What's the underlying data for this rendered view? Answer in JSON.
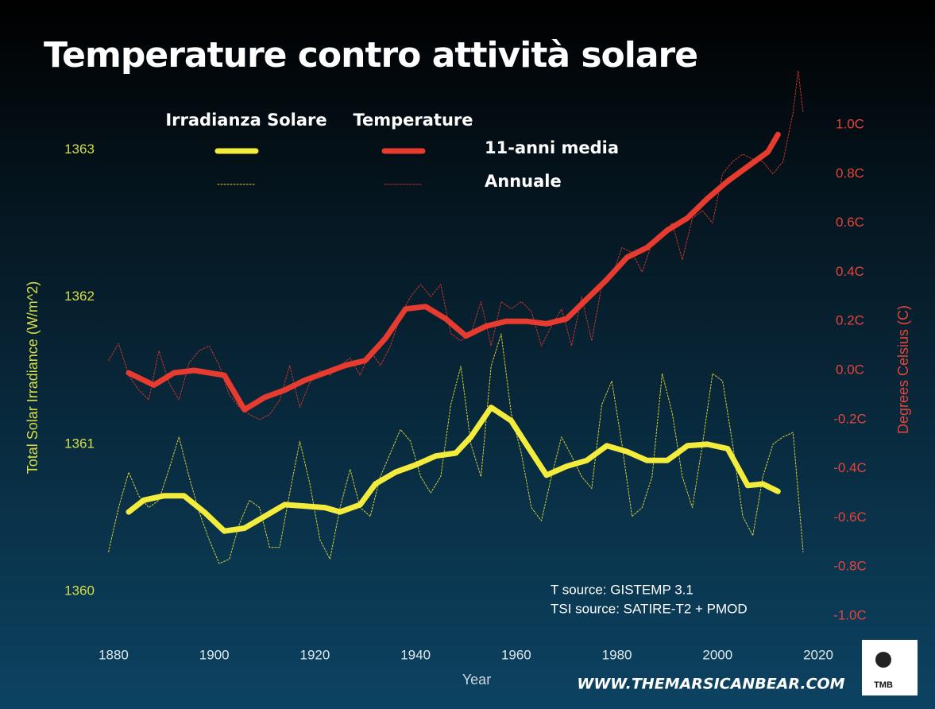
{
  "chart_data": {
    "type": "line",
    "title": "Temperature contro attività solare",
    "xlabel": "Year",
    "ylabel": "Total Solar Irradiance (W/m^2)",
    "y2label": "Degrees Celsius (C)",
    "xlim": [
      1875,
      2025
    ],
    "xticks": [
      1880,
      1900,
      1920,
      1940,
      1960,
      1980,
      2000,
      2020
    ],
    "ylim": [
      1359.75,
      1363.42
    ],
    "yticks": [
      1360,
      1361,
      1362,
      1363
    ],
    "y2lim": [
      -1.05,
      1.15
    ],
    "y2ticks": [
      {
        "value": -1.0,
        "label": "-1.0C"
      },
      {
        "value": -0.8,
        "label": "-0.8C"
      },
      {
        "value": -0.6,
        "label": "-0.6C"
      },
      {
        "value": -0.4,
        "label": "-0.4C"
      },
      {
        "value": -0.2,
        "label": "-0.2C"
      },
      {
        "value": 0.0,
        "label": "0.0C"
      },
      {
        "value": 0.2,
        "label": "0.2C"
      },
      {
        "value": 0.4,
        "label": "0.4C"
      },
      {
        "value": 0.6,
        "label": "0.6C"
      },
      {
        "value": 0.8,
        "label": "0.8C"
      },
      {
        "value": 1.0,
        "label": "1.0C"
      }
    ],
    "ytick_color": "#d6de45",
    "y2tick_color": "#e5443a",
    "legend": {
      "columns": [
        "Irradianza Solare",
        "Temperature"
      ],
      "rows": [
        "11-anni media",
        "Annuale"
      ]
    },
    "series": [
      {
        "color": "#f4ec3c",
        "width": 7,
        "dash": "none",
        "x": [
          1883,
          1886,
          1890,
          1894,
          1898,
          1902,
          1906,
          1910,
          1914,
          1918,
          1922,
          1925,
          1929,
          1932,
          1936,
          1940,
          1944,
          1948,
          1951,
          1955,
          1959,
          1962,
          1966,
          1970,
          1974,
          1978,
          1982,
          1986,
          1990,
          1994,
          1998,
          2002,
          2006,
          2009,
          2012
        ],
        "values": [
          1360.54,
          1360.62,
          1360.65,
          1360.65,
          1360.54,
          1360.41,
          1360.43,
          1360.51,
          1360.59,
          1360.58,
          1360.57,
          1360.54,
          1360.59,
          1360.73,
          1360.81,
          1360.86,
          1360.92,
          1360.94,
          1361.05,
          1361.25,
          1361.16,
          1361.0,
          1360.79,
          1360.85,
          1360.89,
          1360.99,
          1360.95,
          1360.89,
          1360.89,
          1360.99,
          1361.0,
          1360.97,
          1360.72,
          1360.73,
          1360.68
        ]
      },
      {
        "color": "#e63b2e",
        "width": 7,
        "dash": "none",
        "axis": "y2",
        "x": [
          1883,
          1888,
          1892,
          1896,
          1899,
          1902,
          1906,
          1910,
          1914,
          1918,
          1922,
          1926,
          1930,
          1934,
          1938,
          1942,
          1946,
          1950,
          1954,
          1958,
          1962,
          1966,
          1970,
          1974,
          1978,
          1982,
          1986,
          1990,
          1994,
          1998,
          2002,
          2006,
          2010,
          2012
        ],
        "values": [
          -0.01,
          -0.06,
          -0.01,
          0.0,
          -0.01,
          -0.02,
          -0.16,
          -0.11,
          -0.08,
          -0.04,
          -0.01,
          0.02,
          0.04,
          0.13,
          0.25,
          0.26,
          0.21,
          0.14,
          0.18,
          0.2,
          0.2,
          0.19,
          0.21,
          0.29,
          0.37,
          0.46,
          0.5,
          0.57,
          0.62,
          0.7,
          0.77,
          0.83,
          0.89,
          0.96
        ]
      },
      {
        "color": "#d9cf36",
        "width": 1,
        "dash": "2 2",
        "x": [
          1879,
          1881,
          1883,
          1885,
          1887,
          1889,
          1891,
          1893,
          1895,
          1897,
          1899,
          1901,
          1903,
          1905,
          1907,
          1909,
          1911,
          1913,
          1915,
          1917,
          1919,
          1921,
          1923,
          1925,
          1927,
          1929,
          1931,
          1933,
          1935,
          1937,
          1939,
          1941,
          1943,
          1945,
          1947,
          1949,
          1951,
          1953,
          1955,
          1957,
          1959,
          1961,
          1963,
          1965,
          1967,
          1969,
          1971,
          1973,
          1975,
          1977,
          1979,
          1981,
          1983,
          1985,
          1987,
          1989,
          1991,
          1993,
          1995,
          1997,
          1999,
          2001,
          2003,
          2005,
          2007,
          2009,
          2011,
          2013,
          2015,
          2017
        ],
        "values": [
          1360.27,
          1360.57,
          1360.81,
          1360.65,
          1360.57,
          1360.62,
          1360.83,
          1361.05,
          1360.78,
          1360.54,
          1360.35,
          1360.19,
          1360.22,
          1360.46,
          1360.62,
          1360.57,
          1360.3,
          1360.3,
          1360.67,
          1361.02,
          1360.73,
          1360.35,
          1360.22,
          1360.57,
          1360.83,
          1360.57,
          1360.51,
          1360.78,
          1360.94,
          1361.1,
          1361.02,
          1360.78,
          1360.67,
          1360.78,
          1361.27,
          1361.53,
          1361.0,
          1360.78,
          1361.53,
          1361.75,
          1361.21,
          1360.94,
          1360.57,
          1360.48,
          1360.78,
          1361.05,
          1360.92,
          1360.78,
          1360.7,
          1361.27,
          1361.43,
          1361.0,
          1360.51,
          1360.57,
          1360.78,
          1361.48,
          1361.21,
          1360.78,
          1360.57,
          1361.0,
          1361.48,
          1361.43,
          1361.0,
          1360.51,
          1360.38,
          1360.78,
          1361.0,
          1361.05,
          1361.08,
          1360.27
        ]
      },
      {
        "color": "#cc3328",
        "width": 1,
        "dash": "2 2",
        "axis": "y2",
        "x": [
          1879,
          1881,
          1883,
          1885,
          1887,
          1889,
          1891,
          1893,
          1895,
          1897,
          1899,
          1901,
          1903,
          1905,
          1907,
          1909,
          1911,
          1913,
          1915,
          1917,
          1919,
          1921,
          1923,
          1925,
          1927,
          1929,
          1931,
          1933,
          1935,
          1937,
          1939,
          1941,
          1943,
          1945,
          1947,
          1949,
          1951,
          1953,
          1955,
          1957,
          1959,
          1961,
          1963,
          1965,
          1967,
          1969,
          1971,
          1973,
          1975,
          1977,
          1979,
          1981,
          1983,
          1985,
          1987,
          1989,
          1991,
          1993,
          1995,
          1997,
          1999,
          2001,
          2003,
          2005,
          2007,
          2009,
          2011,
          2013,
          2015,
          2016,
          2017
        ],
        "values": [
          0.04,
          0.11,
          -0.02,
          -0.08,
          -0.12,
          0.08,
          -0.05,
          -0.12,
          0.03,
          0.08,
          0.1,
          0.02,
          -0.1,
          -0.15,
          -0.18,
          -0.2,
          -0.18,
          -0.12,
          0.02,
          -0.15,
          -0.05,
          0.0,
          -0.02,
          0.02,
          0.05,
          -0.02,
          0.08,
          0.02,
          0.1,
          0.22,
          0.3,
          0.35,
          0.3,
          0.35,
          0.15,
          0.12,
          0.15,
          0.28,
          0.1,
          0.28,
          0.25,
          0.28,
          0.24,
          0.1,
          0.18,
          0.25,
          0.1,
          0.3,
          0.12,
          0.35,
          0.38,
          0.5,
          0.48,
          0.4,
          0.52,
          0.55,
          0.6,
          0.45,
          0.62,
          0.65,
          0.6,
          0.8,
          0.85,
          0.88,
          0.86,
          0.85,
          0.8,
          0.85,
          1.05,
          1.22,
          1.05
        ]
      }
    ],
    "notes": [
      "T source: GISTEMP 3.1",
      "TSI source: SATIRE-T2 + PMOD"
    ],
    "website": "WWW.THEMARSICANBEAR.COM",
    "logo": "TMB"
  }
}
